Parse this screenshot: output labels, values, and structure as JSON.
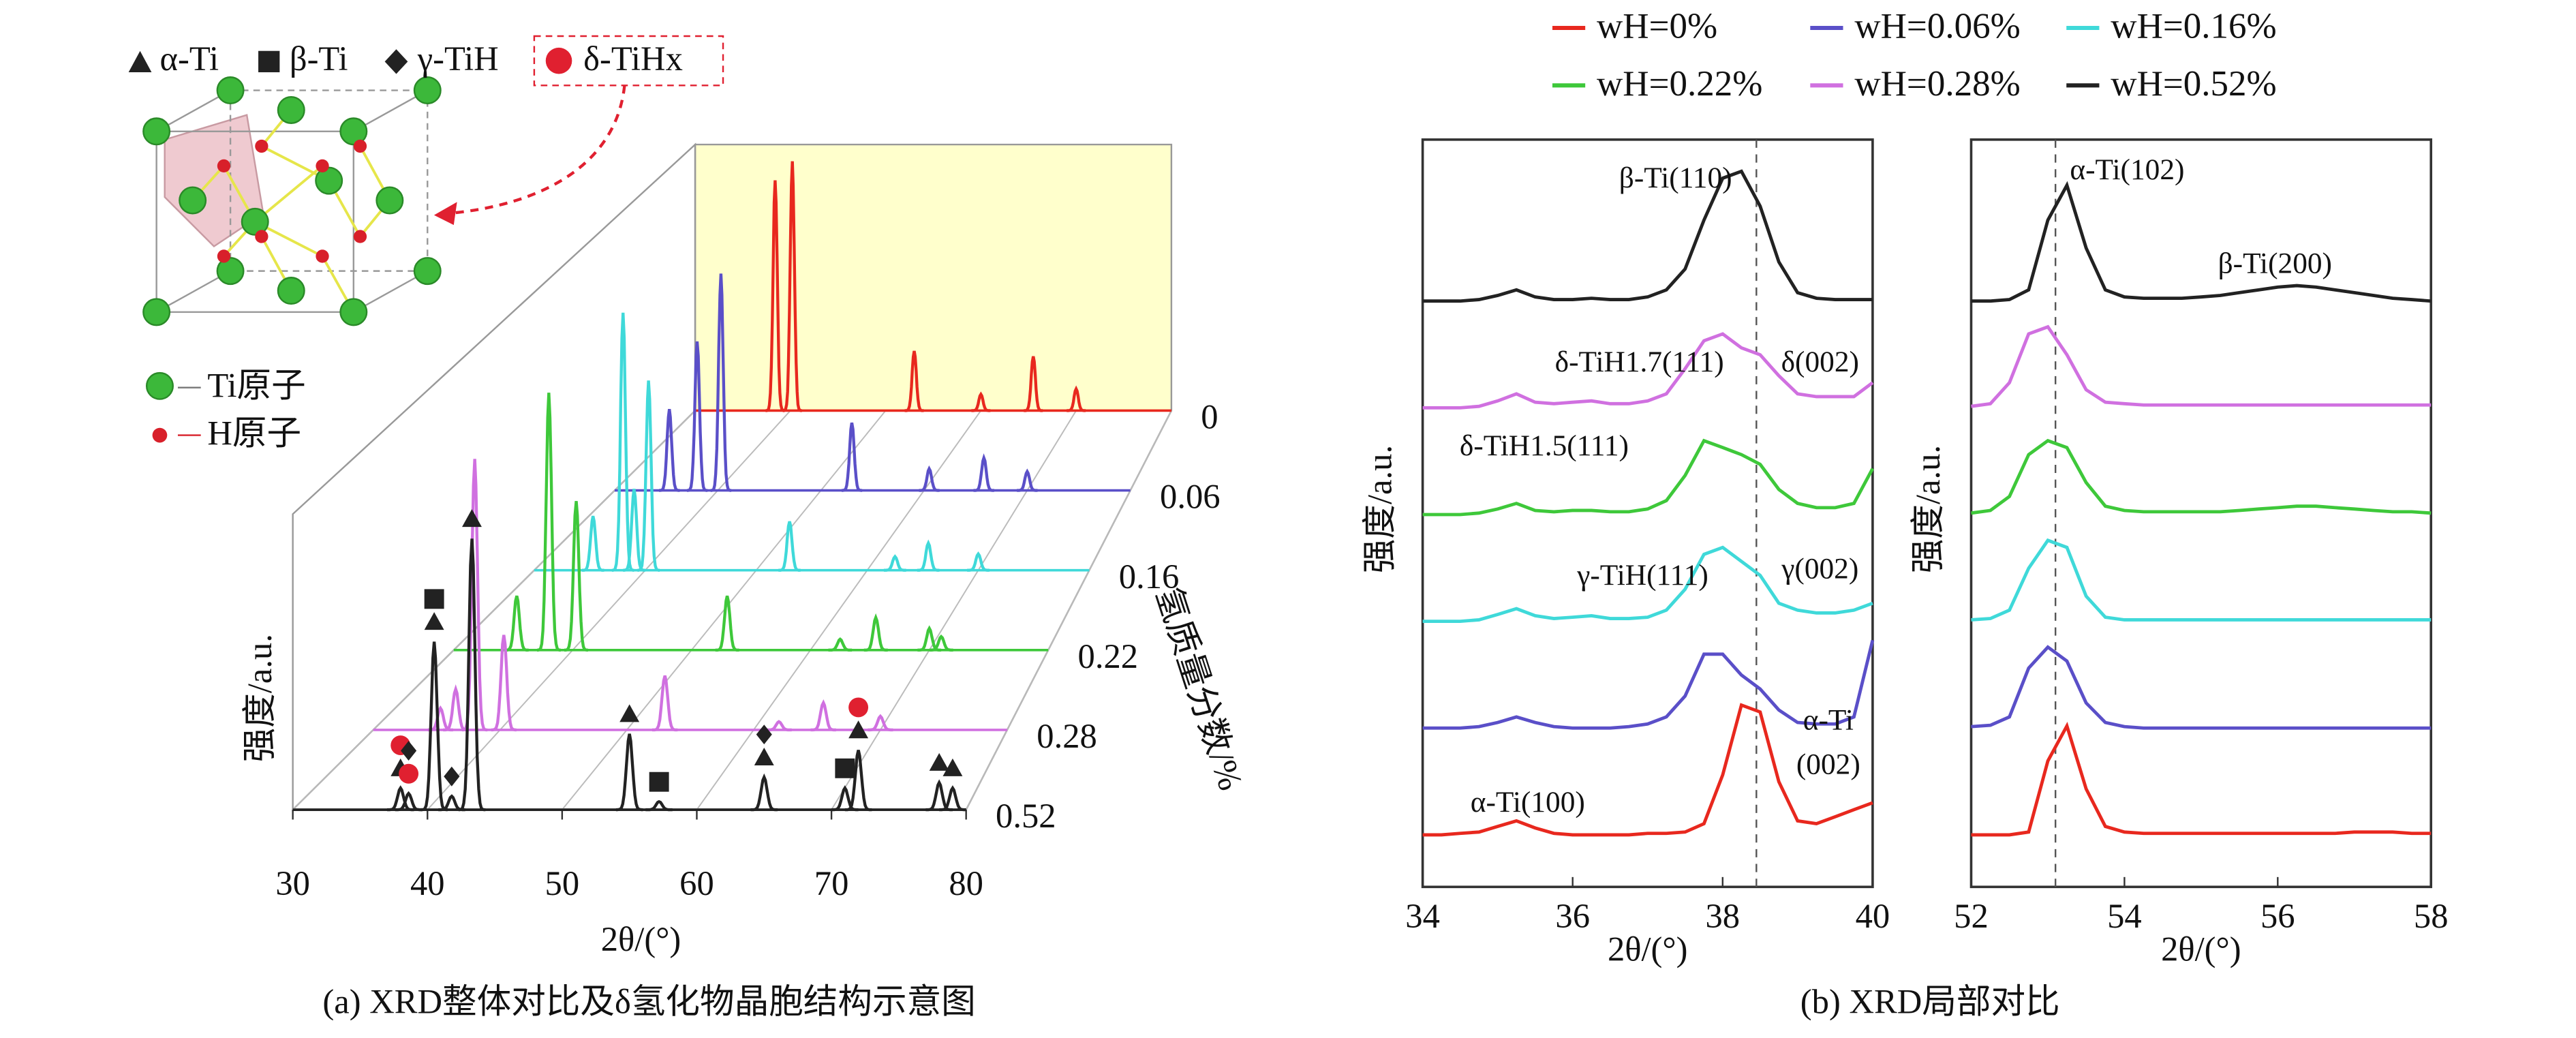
{
  "chart_data": [
    {
      "type": "waterfall",
      "legend": [
        "α-Ti",
        "β-Ti",
        "γ-TiH",
        "δ-TiHx"
      ],
      "atom_labels": [
        "Ti原子",
        "H原子"
      ],
      "caption": "(a) XRD整体对比及δ氢化物晶胞结构示意图",
      "xlabel": "2θ/(°)",
      "ylabel": "强度/a.u.",
      "zlabel": "氢质量分数/%",
      "xlim": [
        30,
        80
      ],
      "xticks": [
        30,
        40,
        50,
        60,
        70,
        80
      ],
      "series": [
        {
          "name": "0",
          "color": "#e8281e",
          "x": [
            38.4,
            40.2,
            53.0,
            60.0,
            65.5,
            70.0
          ],
          "values": [
            0.85,
            0.92,
            0.22,
            0.06,
            0.2,
            0.08
          ]
        },
        {
          "name": "0.06",
          "color": "#5a4fc8",
          "x": [
            35.3,
            38.0,
            40.3,
            53.0,
            60.5,
            65.8,
            70.0
          ],
          "values": [
            0.3,
            0.55,
            0.8,
            0.25,
            0.08,
            0.12,
            0.07
          ]
        },
        {
          "name": "0.16",
          "color": "#3fd9d9",
          "x": [
            35.3,
            38.0,
            39.0,
            40.3,
            53.0,
            62.5,
            65.5,
            70.0
          ],
          "values": [
            0.2,
            0.95,
            0.3,
            0.7,
            0.18,
            0.05,
            0.1,
            0.06
          ]
        },
        {
          "name": "0.22",
          "color": "#3ec83a",
          "x": [
            35.3,
            38.0,
            40.3,
            53.0,
            62.5,
            65.5,
            70.0,
            71.0
          ],
          "values": [
            0.2,
            0.95,
            0.55,
            0.2,
            0.04,
            0.12,
            0.08,
            0.05
          ]
        },
        {
          "name": "0.28",
          "color": "#d070e0",
          "x": [
            35.3,
            36.5,
            38.0,
            40.3,
            53.0,
            62.0,
            65.5,
            70.0
          ],
          "values": [
            0.08,
            0.15,
            1.0,
            0.35,
            0.2,
            0.03,
            0.1,
            0.05
          ]
        },
        {
          "name": "0.52",
          "color": "#222222",
          "x": [
            38.0,
            38.6,
            40.5,
            41.8,
            43.3,
            55.0,
            57.2,
            65.0,
            71.0,
            72.0,
            78.0,
            79.0
          ],
          "values": [
            0.08,
            0.06,
            0.62,
            0.05,
            1.0,
            0.28,
            0.03,
            0.12,
            0.08,
            0.22,
            0.1,
            0.08
          ]
        }
      ]
    },
    {
      "type": "line",
      "caption": "(b) XRD局部对比",
      "xlabel": "2θ/(°)",
      "ylabel": "强度/a.u.",
      "xlim": [
        34,
        40
      ],
      "xticks": [
        34,
        36,
        38,
        40
      ],
      "reference_lines": [
        38.45
      ],
      "annotations": [
        "β-Ti(110)",
        "δ-TiH1.7(111)",
        "δ(002)",
        "δ-TiH1.5(111)",
        "γ-TiH(111)",
        "γ(002)",
        "α-Ti",
        "(002)",
        "α-Ti(100)"
      ],
      "x": [
        34,
        34.25,
        34.5,
        34.75,
        35,
        35.25,
        35.5,
        35.75,
        36,
        36.25,
        36.5,
        36.75,
        37,
        37.25,
        37.5,
        37.75,
        38,
        38.25,
        38.5,
        38.75,
        39,
        39.25,
        39.5,
        39.75,
        40
      ],
      "series": [
        {
          "name": "wH=0%",
          "color": "#e8281e",
          "values": [
            0.02,
            0.02,
            0.03,
            0.04,
            0.08,
            0.12,
            0.07,
            0.03,
            0.02,
            0.02,
            0.02,
            0.02,
            0.03,
            0.03,
            0.04,
            0.1,
            0.45,
            0.95,
            0.9,
            0.4,
            0.12,
            0.1,
            0.15,
            0.2,
            0.25
          ]
        },
        {
          "name": "wH=0.06%",
          "color": "#5a4fc8",
          "values": [
            0.02,
            0.02,
            0.02,
            0.03,
            0.06,
            0.1,
            0.06,
            0.03,
            0.02,
            0.02,
            0.02,
            0.03,
            0.05,
            0.1,
            0.25,
            0.55,
            0.55,
            0.4,
            0.3,
            0.15,
            0.06,
            0.05,
            0.05,
            0.1,
            0.65
          ]
        },
        {
          "name": "wH=0.16%",
          "color": "#3fd9d9",
          "values": [
            0.02,
            0.02,
            0.02,
            0.03,
            0.07,
            0.11,
            0.06,
            0.04,
            0.05,
            0.06,
            0.04,
            0.04,
            0.05,
            0.1,
            0.25,
            0.5,
            0.55,
            0.45,
            0.35,
            0.15,
            0.1,
            0.08,
            0.08,
            0.1,
            0.15
          ]
        },
        {
          "name": "wH=0.22%",
          "color": "#3ec83a",
          "values": [
            0.02,
            0.02,
            0.02,
            0.03,
            0.06,
            0.1,
            0.05,
            0.04,
            0.05,
            0.05,
            0.04,
            0.04,
            0.06,
            0.12,
            0.3,
            0.55,
            0.5,
            0.45,
            0.38,
            0.2,
            0.1,
            0.07,
            0.07,
            0.1,
            0.35
          ]
        },
        {
          "name": "wH=0.28%",
          "color": "#d070e0",
          "values": [
            0.02,
            0.02,
            0.02,
            0.03,
            0.07,
            0.12,
            0.06,
            0.05,
            0.06,
            0.07,
            0.05,
            0.05,
            0.07,
            0.12,
            0.3,
            0.5,
            0.55,
            0.45,
            0.4,
            0.25,
            0.12,
            0.1,
            0.1,
            0.1,
            0.2
          ]
        },
        {
          "name": "wH=0.52%",
          "color": "#222222",
          "values": [
            0.02,
            0.02,
            0.02,
            0.03,
            0.06,
            0.1,
            0.05,
            0.03,
            0.03,
            0.04,
            0.03,
            0.03,
            0.05,
            0.1,
            0.25,
            0.6,
            0.9,
            0.95,
            0.7,
            0.3,
            0.08,
            0.04,
            0.03,
            0.03,
            0.03
          ]
        }
      ]
    },
    {
      "type": "line",
      "xlabel": "2θ/(°)",
      "ylabel": "强度/a.u.",
      "xlim": [
        52,
        58
      ],
      "xticks": [
        52,
        54,
        56,
        58
      ],
      "reference_lines": [
        53.1
      ],
      "annotations": [
        "α-Ti(102)",
        "β-Ti(200)"
      ],
      "x": [
        52,
        52.25,
        52.5,
        52.75,
        53,
        53.25,
        53.5,
        53.75,
        54,
        54.25,
        54.5,
        54.75,
        55,
        55.25,
        55.5,
        55.75,
        56,
        56.25,
        56.5,
        56.75,
        57,
        57.25,
        57.5,
        57.75,
        58
      ],
      "series": [
        {
          "color": "#e8281e",
          "values": [
            0.02,
            0.02,
            0.02,
            0.04,
            0.55,
            0.8,
            0.35,
            0.08,
            0.04,
            0.03,
            0.03,
            0.03,
            0.03,
            0.03,
            0.03,
            0.03,
            0.03,
            0.03,
            0.03,
            0.03,
            0.04,
            0.04,
            0.04,
            0.03,
            0.03
          ]
        },
        {
          "color": "#5a4fc8",
          "values": [
            0.03,
            0.04,
            0.1,
            0.45,
            0.6,
            0.5,
            0.2,
            0.06,
            0.03,
            0.02,
            0.02,
            0.02,
            0.02,
            0.02,
            0.02,
            0.02,
            0.02,
            0.02,
            0.02,
            0.02,
            0.02,
            0.02,
            0.02,
            0.02,
            0.02
          ]
        },
        {
          "color": "#3fd9d9",
          "values": [
            0.03,
            0.04,
            0.1,
            0.4,
            0.6,
            0.55,
            0.2,
            0.05,
            0.03,
            0.03,
            0.03,
            0.03,
            0.03,
            0.03,
            0.03,
            0.03,
            0.03,
            0.03,
            0.03,
            0.03,
            0.03,
            0.03,
            0.03,
            0.03,
            0.03
          ]
        },
        {
          "color": "#3ec83a",
          "values": [
            0.03,
            0.05,
            0.15,
            0.45,
            0.55,
            0.5,
            0.25,
            0.08,
            0.05,
            0.04,
            0.04,
            0.04,
            0.04,
            0.04,
            0.05,
            0.06,
            0.07,
            0.08,
            0.08,
            0.07,
            0.06,
            0.05,
            0.04,
            0.04,
            0.03
          ]
        },
        {
          "color": "#d070e0",
          "values": [
            0.03,
            0.05,
            0.2,
            0.55,
            0.6,
            0.4,
            0.15,
            0.06,
            0.05,
            0.04,
            0.04,
            0.04,
            0.04,
            0.04,
            0.04,
            0.04,
            0.04,
            0.04,
            0.04,
            0.04,
            0.04,
            0.04,
            0.04,
            0.04,
            0.04
          ]
        },
        {
          "color": "#222222",
          "values": [
            0.02,
            0.02,
            0.03,
            0.1,
            0.6,
            0.85,
            0.4,
            0.1,
            0.05,
            0.04,
            0.04,
            0.04,
            0.05,
            0.06,
            0.08,
            0.1,
            0.12,
            0.13,
            0.12,
            0.1,
            0.08,
            0.06,
            0.04,
            0.03,
            0.02
          ]
        }
      ]
    }
  ]
}
